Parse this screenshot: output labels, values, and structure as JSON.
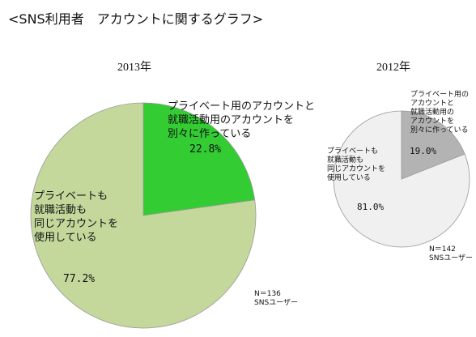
{
  "page_title": "<SNS利用者　アカウントに関するグラフ>",
  "colors": {
    "green_light": "#c4d89c",
    "green_bright": "#33cc33",
    "gray_light": "#f0f0f0",
    "gray_dark": "#b3b3b3",
    "stroke": "#999999"
  },
  "chart_data": [
    {
      "type": "pie",
      "title": "2013年",
      "slices": [
        {
          "label": "プライベート用のアカウントと就職活動用のアカウントを別々に作っている",
          "label_lines": [
            "プライベート用のアカウントと",
            "就職活動用のアカウントを",
            "別々に作っている"
          ],
          "value": 22.8,
          "value_label": "22.8%"
        },
        {
          "label": "プライベートも就職活動も同じアカウントを使用している",
          "label_lines": [
            "プライベートも",
            "就職活動も",
            "同じアカウントを",
            "使用している"
          ],
          "value": 77.2,
          "value_label": "77.2%"
        }
      ],
      "note": [
        "N＝136",
        "SNSユーザー"
      ]
    },
    {
      "type": "pie",
      "title": "2012年",
      "slices": [
        {
          "label": "プライベート用のアカウントと就職活動用のアカウントを別々に作っている",
          "label_lines": [
            "プライベート用の",
            "アカウントと",
            "就職活動用の",
            "アカウントを",
            "別々に作っている"
          ],
          "value": 19.0,
          "value_label": "19.0%"
        },
        {
          "label": "プライベートも就職活動も同じアカウントを使用している",
          "label_lines": [
            "プライベートも",
            "就職活動も",
            "同じアカウントを",
            "使用している"
          ],
          "value": 81.0,
          "value_label": "81.0%"
        }
      ],
      "note": [
        "N＝142",
        "SNSユーザー"
      ]
    }
  ]
}
